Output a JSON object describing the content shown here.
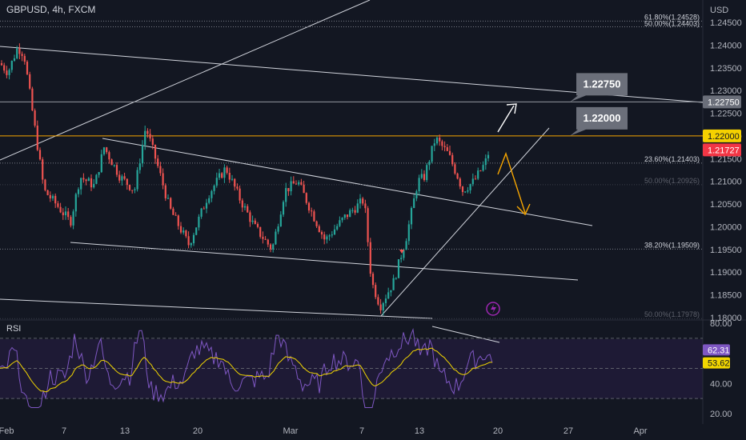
{
  "header": {
    "symbol_line": "GBPUSD, 4h, FXCM",
    "currency": "USD"
  },
  "colors": {
    "background": "#131722",
    "bull": "#26a69a",
    "bear": "#ef5350",
    "fib_line": "#d1d4dc",
    "orange": "#f7a600",
    "rsi_line": "#7e57c2",
    "rsi_ma": "#f2d600",
    "label_box": "#6b6f7a",
    "price_tag_bg": "#f23645",
    "highlight_tag_bg": "#f5d100"
  },
  "price_axis": {
    "ticks": [
      "1.24500",
      "1.24000",
      "1.23500",
      "1.23000",
      "1.22500",
      "1.22000",
      "1.21500",
      "1.21000",
      "1.20500",
      "1.20000",
      "1.19500",
      "1.19000",
      "1.18500",
      "1.18000"
    ],
    "tags": [
      {
        "text": "1.22750",
        "kind": "gray"
      },
      {
        "text": "1.22000",
        "kind": "yellow"
      },
      {
        "text": "1.21727",
        "kind": "red"
      }
    ]
  },
  "fib_levels": [
    {
      "text": "61.80%(1.24528)",
      "price": 1.24528,
      "style": "dotted"
    },
    {
      "text": "50.00%(1.24403)",
      "price": 1.24403,
      "style": "dotted"
    },
    {
      "text": "23.60%(1.21403)",
      "price": 1.21403,
      "style": "dotted"
    },
    {
      "text": "50.00%(1.20926)",
      "price": 1.20926,
      "style": "faint"
    },
    {
      "text": "38.20%(1.19509)",
      "price": 1.19509,
      "style": "dotted"
    },
    {
      "text": "50.00%(1.17978)",
      "price": 1.17978,
      "style": "faint"
    }
  ],
  "callouts": [
    {
      "text": "1.22750",
      "price": 1.2275
    },
    {
      "text": "1.22000",
      "price": 1.22
    }
  ],
  "horizontal_levels": [
    1.2275,
    1.22
  ],
  "rsi": {
    "title": "RSI",
    "ticks": [
      "80.00",
      "40.00",
      "20.00"
    ],
    "tags": [
      {
        "text": "62.31",
        "kind": "purple"
      },
      {
        "text": "53.62",
        "kind": "yellow"
      }
    ],
    "overbought": 70,
    "oversold": 30,
    "value": 62.31,
    "ma_value": 53.62
  },
  "time_axis": [
    "Feb",
    "7",
    "13",
    "20",
    "Mar",
    "7",
    "13",
    "20",
    "27",
    "Apr"
  ],
  "chart_data": {
    "type": "candlestick",
    "title": "GBPUSD, 4h, FXCM",
    "ylabel": "USD",
    "ylim": [
      1.1795,
      1.2475
    ],
    "x_categories": [
      "Feb",
      "7",
      "13",
      "20",
      "Mar",
      "7",
      "13",
      "20",
      "27",
      "Apr"
    ],
    "key_points": [
      {
        "x": "Feb",
        "y": 1.2395
      },
      {
        "x": "7",
        "y": 1.2003
      },
      {
        "x": "13",
        "y": 1.2268
      },
      {
        "x": "20",
        "y": 1.1935
      },
      {
        "x": "Mar",
        "y": 1.2145
      },
      {
        "x": "Mar",
        "y": 1.194
      },
      {
        "x": "7",
        "y": 1.181
      },
      {
        "x": "13",
        "y": 1.2205
      },
      {
        "x": "13",
        "y": 1.2065
      },
      {
        "x": "20",
        "y": 1.2203
      }
    ],
    "last_price": 1.21727,
    "indicator": {
      "name": "RSI",
      "ylim": [
        20,
        80
      ],
      "last": 62.31,
      "ma_last": 53.62
    }
  }
}
